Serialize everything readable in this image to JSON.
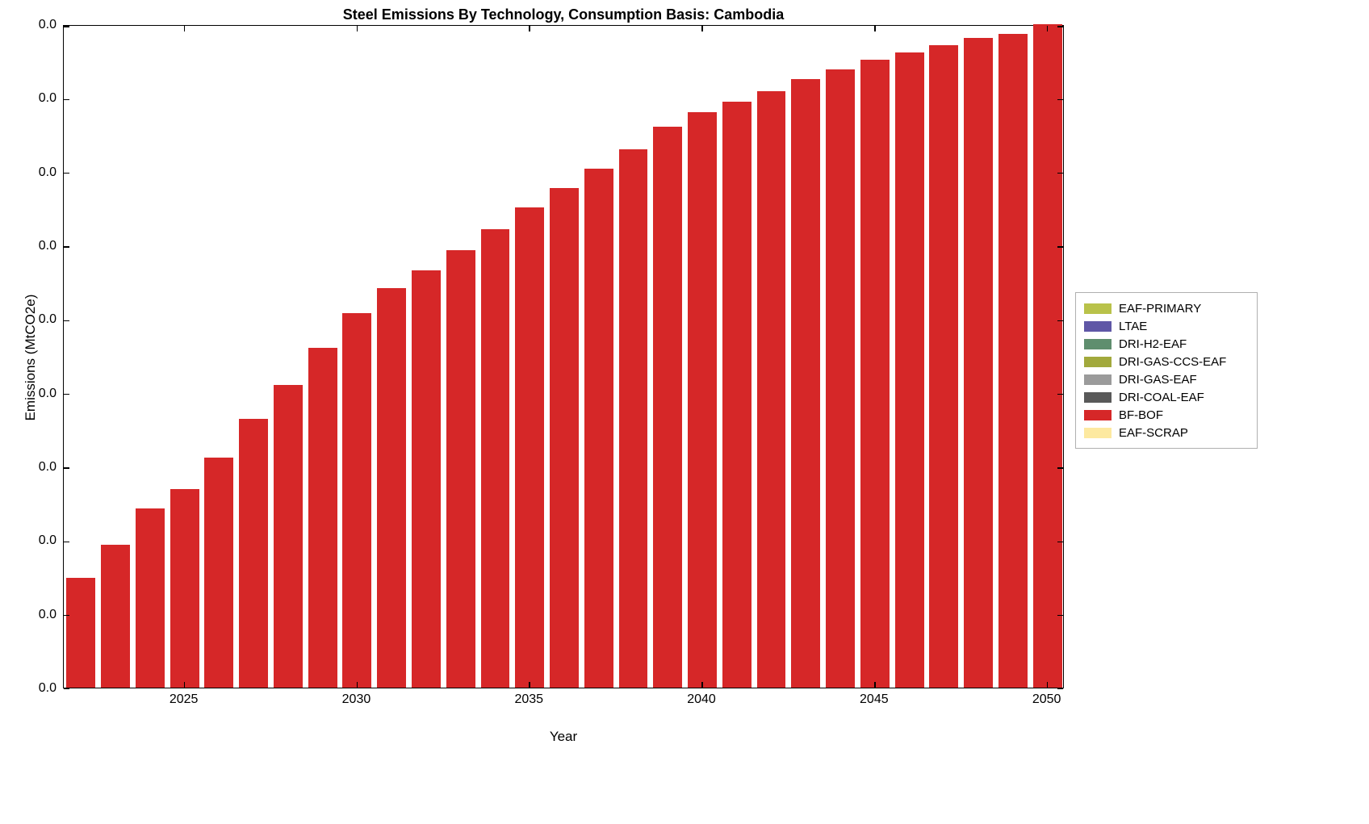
{
  "figure": {
    "title": "Steel Emissions By Technology, Consumption Basis: Cambodia",
    "xlabel": "Year",
    "ylabel": "Emissions (MtCO2e)"
  },
  "chart_data": {
    "type": "bar",
    "title": "Steel Emissions By Technology, Consumption Basis: Cambodia",
    "xlabel": "Year",
    "ylabel": "Emissions (MtCO2e)",
    "categories": [
      "2022",
      "2023",
      "2024",
      "2025",
      "2026",
      "2027",
      "2028",
      "2029",
      "2030",
      "2031",
      "2032",
      "2033",
      "2034",
      "2035",
      "2036",
      "2037",
      "2038",
      "2039",
      "2040",
      "2041",
      "2042",
      "2043",
      "2044",
      "2045",
      "2046",
      "2047",
      "2048",
      "2049",
      "2050"
    ],
    "series": [
      {
        "name": "BF-BOF",
        "color": "#d62728",
        "values": [
          0.165,
          0.215,
          0.27,
          0.299,
          0.347,
          0.405,
          0.456,
          0.512,
          0.565,
          0.602,
          0.629,
          0.659,
          0.691,
          0.724,
          0.753,
          0.782,
          0.811,
          0.845,
          0.867,
          0.883,
          0.899,
          0.917,
          0.932,
          0.946,
          0.957,
          0.968,
          0.979,
          0.985,
          1.0
        ]
      }
    ],
    "ylim": [
      0,
      1
    ],
    "x_tick_labels": [
      "2025",
      "2030",
      "2035",
      "2040",
      "2045",
      "2050"
    ],
    "y_tick_labels": [
      "0.0",
      "0.0",
      "0.0",
      "0.0",
      "0.0",
      "0.0",
      "0.0",
      "0.0",
      "0.0",
      "0.0"
    ],
    "grid": false,
    "legend_position": "outside-right",
    "legend": [
      {
        "label": "EAF-PRIMARY",
        "color": "#b9c24a"
      },
      {
        "label": "LTAE",
        "color": "#5f57a6"
      },
      {
        "label": "DRI-H2-EAF",
        "color": "#5f8e6e"
      },
      {
        "label": "DRI-GAS-CCS-EAF",
        "color": "#a2a93c"
      },
      {
        "label": "DRI-GAS-EAF",
        "color": "#9b9b9b"
      },
      {
        "label": "DRI-COAL-EAF",
        "color": "#595959"
      },
      {
        "label": "BF-BOF",
        "color": "#d62728"
      },
      {
        "label": "EAF-SCRAP",
        "color": "#fde9a0"
      }
    ]
  }
}
